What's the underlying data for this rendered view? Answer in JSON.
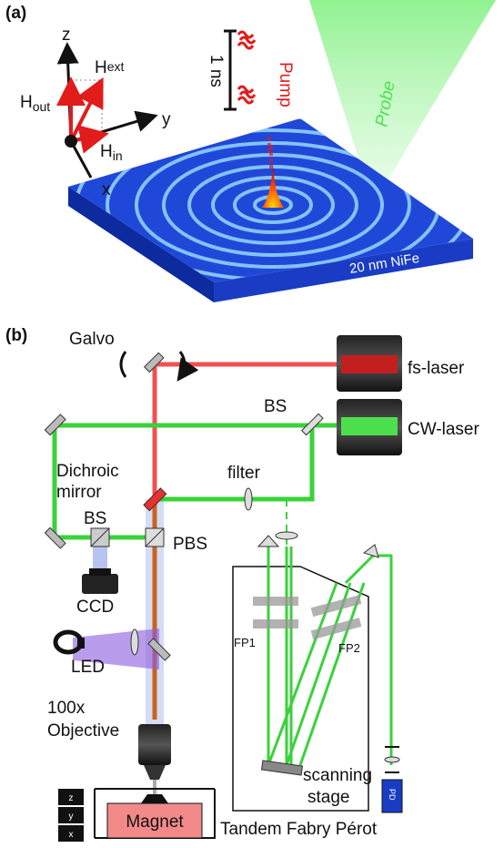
{
  "panel_a": {
    "label": "(a)",
    "axes": {
      "z": "z",
      "y": "y",
      "x": "x"
    },
    "fields": [
      {
        "symbol": "H",
        "subscript": "ext"
      },
      {
        "symbol": "H",
        "subscript": "out"
      },
      {
        "symbol": "H",
        "subscript": "in"
      }
    ],
    "pulse_spacing": "1 ns",
    "pump": "Pump",
    "probe": "Probe",
    "film": "20 nm NiFe"
  },
  "panel_b": {
    "label": "(b)",
    "galvo": "Galvo",
    "fs_laser": "fs-laser",
    "cw_laser": "CW-laser",
    "bs_top": "BS",
    "dichroic": [
      "Dichroic",
      "mirror"
    ],
    "filter": "filter",
    "bs_left": "BS",
    "pbs": "PBS",
    "ccd": "CCD",
    "led": "LED",
    "objective": [
      "100x",
      "Objective"
    ],
    "fp1": "FP1",
    "fp2": "FP2",
    "scanning_stage": [
      "scanning",
      "stage"
    ],
    "magnet": "Magnet",
    "tandem": "Tandem Fabry Pérot",
    "stage_axes": [
      "z",
      "y",
      "x"
    ],
    "pd": "PD"
  }
}
